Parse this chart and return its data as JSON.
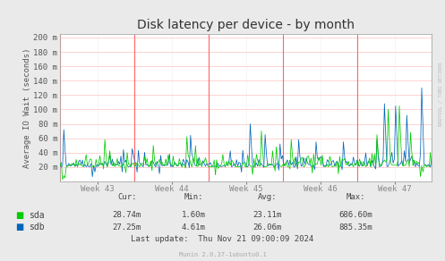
{
  "title": "Disk latency per device - by month",
  "ylabel": "Average IO Wait (seconds)",
  "background_color": "#EAEAEA",
  "plot_bg_color": "#FFFFFF",
  "grid_color_h": "#FFCCCC",
  "grid_color_v": "#DDDDDD",
  "week_line_color": "#FF6666",
  "y_ticks": [
    20,
    40,
    60,
    80,
    100,
    120,
    140,
    160,
    180,
    200
  ],
  "y_tick_labels": [
    "20 m",
    "40 m",
    "60 m",
    "80 m",
    "100 m",
    "120 m",
    "140 m",
    "160 m",
    "180 m",
    "200 m"
  ],
  "ylim": [
    0,
    205
  ],
  "x_tick_labels": [
    "Week 43",
    "Week 44",
    "Week 45",
    "Week 46",
    "Week 47"
  ],
  "sda_color": "#00CC00",
  "sdb_color": "#0066BB",
  "table_headers": [
    "Cur:",
    "Min:",
    "Avg:",
    "Max:"
  ],
  "table_sda": [
    "28.74m",
    "1.60m",
    "23.11m",
    "686.60m"
  ],
  "table_sdb": [
    "27.25m",
    "4.61m",
    "26.06m",
    "885.35m"
  ],
  "last_update": "Last update:  Thu Nov 21 09:00:09 2024",
  "munin_version": "Munin 2.0.37-1ubuntu0.1",
  "rrdtool_text": "RRDTOOL / TOBI OETIKER",
  "title_fontsize": 10,
  "axis_fontsize": 6.5,
  "legend_fontsize": 7,
  "table_fontsize": 6.5
}
